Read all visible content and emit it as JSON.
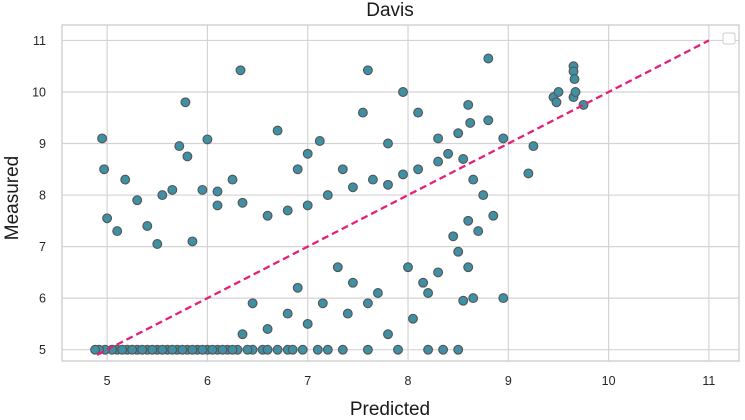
{
  "chart_data": {
    "type": "scatter",
    "title": "Davis",
    "xlabel": "Predicted",
    "ylabel": "Measured",
    "xlim": [
      4.55,
      11.3
    ],
    "ylim": [
      4.78,
      11.3
    ],
    "xticks": [
      5,
      6,
      7,
      8,
      9,
      10,
      11
    ],
    "yticks": [
      5,
      6,
      7,
      8,
      9,
      10,
      11
    ],
    "grid": true,
    "legend": "top-right",
    "colors": {
      "points": "#3f8fa5",
      "point_edge": "#555555",
      "reference_line": "#e6207a"
    },
    "reference_line": {
      "style": "dashed",
      "x": [
        4.9,
        11.0
      ],
      "y": [
        4.9,
        11.0
      ]
    },
    "series": [
      {
        "points": [
          [
            4.95,
            9.1
          ],
          [
            4.97,
            8.5
          ],
          [
            5.18,
            8.3
          ],
          [
            5.3,
            7.9
          ],
          [
            5.55,
            8.0
          ],
          [
            5.65,
            8.1
          ],
          [
            5.72,
            8.95
          ],
          [
            5.78,
            9.8
          ],
          [
            5.8,
            8.75
          ],
          [
            5.95,
            8.1
          ],
          [
            6.0,
            9.08
          ],
          [
            6.1,
            8.07
          ],
          [
            6.25,
            8.3
          ],
          [
            6.33,
            10.42
          ],
          [
            6.7,
            9.25
          ],
          [
            6.9,
            8.5
          ],
          [
            7.0,
            8.8
          ],
          [
            7.12,
            9.05
          ],
          [
            7.35,
            8.5
          ],
          [
            7.55,
            9.6
          ],
          [
            7.6,
            10.42
          ],
          [
            7.8,
            9.0
          ],
          [
            7.95,
            10.0
          ],
          [
            8.1,
            9.6
          ],
          [
            8.3,
            9.1
          ],
          [
            8.5,
            9.2
          ],
          [
            8.6,
            9.75
          ],
          [
            8.62,
            9.4
          ],
          [
            8.8,
            10.65
          ],
          [
            8.8,
            9.45
          ],
          [
            8.95,
            9.1
          ],
          [
            9.25,
            8.95
          ],
          [
            9.2,
            8.42
          ],
          [
            9.45,
            9.9
          ],
          [
            9.5,
            10.0
          ],
          [
            9.48,
            9.8
          ],
          [
            9.65,
            10.5
          ],
          [
            9.65,
            10.4
          ],
          [
            9.66,
            10.25
          ],
          [
            9.65,
            9.9
          ],
          [
            9.75,
            9.75
          ],
          [
            9.67,
            10.0
          ],
          [
            5.0,
            7.55
          ],
          [
            5.1,
            7.3
          ],
          [
            5.4,
            7.4
          ],
          [
            5.5,
            7.05
          ],
          [
            5.85,
            7.1
          ],
          [
            6.1,
            7.8
          ],
          [
            6.35,
            7.85
          ],
          [
            6.6,
            7.6
          ],
          [
            6.8,
            7.7
          ],
          [
            7.0,
            7.8
          ],
          [
            7.2,
            8.0
          ],
          [
            7.45,
            8.15
          ],
          [
            7.65,
            8.3
          ],
          [
            7.8,
            8.2
          ],
          [
            7.95,
            8.4
          ],
          [
            8.1,
            8.5
          ],
          [
            8.3,
            8.65
          ],
          [
            8.4,
            8.8
          ],
          [
            8.55,
            8.7
          ],
          [
            8.65,
            8.3
          ],
          [
            8.75,
            8.0
          ],
          [
            8.6,
            7.5
          ],
          [
            8.45,
            7.2
          ],
          [
            8.7,
            7.3
          ],
          [
            8.85,
            7.6
          ],
          [
            8.5,
            6.9
          ],
          [
            8.6,
            6.6
          ],
          [
            8.65,
            6.0
          ],
          [
            8.55,
            5.95
          ],
          [
            8.95,
            6.0
          ],
          [
            8.3,
            6.5
          ],
          [
            8.15,
            6.3
          ],
          [
            8.0,
            6.6
          ],
          [
            8.2,
            6.1
          ],
          [
            8.05,
            5.6
          ],
          [
            7.8,
            5.3
          ],
          [
            7.7,
            6.1
          ],
          [
            7.6,
            5.9
          ],
          [
            7.45,
            6.3
          ],
          [
            7.4,
            5.7
          ],
          [
            7.3,
            6.6
          ],
          [
            7.15,
            5.9
          ],
          [
            7.0,
            5.5
          ],
          [
            6.9,
            6.2
          ],
          [
            6.8,
            5.7
          ],
          [
            6.6,
            5.4
          ],
          [
            6.45,
            5.9
          ],
          [
            6.35,
            5.3
          ],
          [
            8.2,
            5.0
          ],
          [
            8.35,
            5.0
          ],
          [
            8.5,
            5.0
          ],
          [
            7.9,
            5.0
          ],
          [
            7.6,
            5.0
          ],
          [
            7.35,
            5.0
          ],
          [
            7.1,
            5.0
          ],
          [
            6.95,
            5.0
          ],
          [
            6.8,
            5.0
          ],
          [
            6.7,
            5.0
          ],
          [
            6.55,
            5.0
          ],
          [
            6.45,
            5.0
          ],
          [
            6.3,
            5.0
          ],
          [
            6.2,
            5.0
          ],
          [
            6.1,
            5.0
          ],
          [
            6.0,
            5.0
          ],
          [
            5.9,
            5.0
          ],
          [
            5.8,
            5.0
          ],
          [
            5.7,
            5.0
          ],
          [
            5.6,
            5.0
          ],
          [
            5.5,
            5.0
          ],
          [
            5.4,
            5.0
          ],
          [
            5.3,
            5.0
          ],
          [
            5.2,
            5.0
          ],
          [
            5.1,
            5.0
          ],
          [
            5.05,
            5.0
          ],
          [
            4.98,
            5.0
          ],
          [
            4.92,
            5.0
          ],
          [
            4.88,
            5.0
          ],
          [
            5.15,
            5.0
          ],
          [
            5.25,
            5.0
          ],
          [
            5.35,
            5.0
          ],
          [
            5.45,
            5.0
          ],
          [
            5.55,
            5.0
          ],
          [
            5.65,
            5.0
          ],
          [
            5.75,
            5.0
          ],
          [
            5.85,
            5.0
          ],
          [
            5.95,
            5.0
          ],
          [
            6.05,
            5.0
          ],
          [
            6.15,
            5.0
          ],
          [
            6.25,
            5.0
          ],
          [
            6.4,
            5.0
          ],
          [
            6.6,
            5.0
          ],
          [
            6.85,
            5.0
          ],
          [
            7.2,
            5.0
          ]
        ]
      }
    ]
  }
}
